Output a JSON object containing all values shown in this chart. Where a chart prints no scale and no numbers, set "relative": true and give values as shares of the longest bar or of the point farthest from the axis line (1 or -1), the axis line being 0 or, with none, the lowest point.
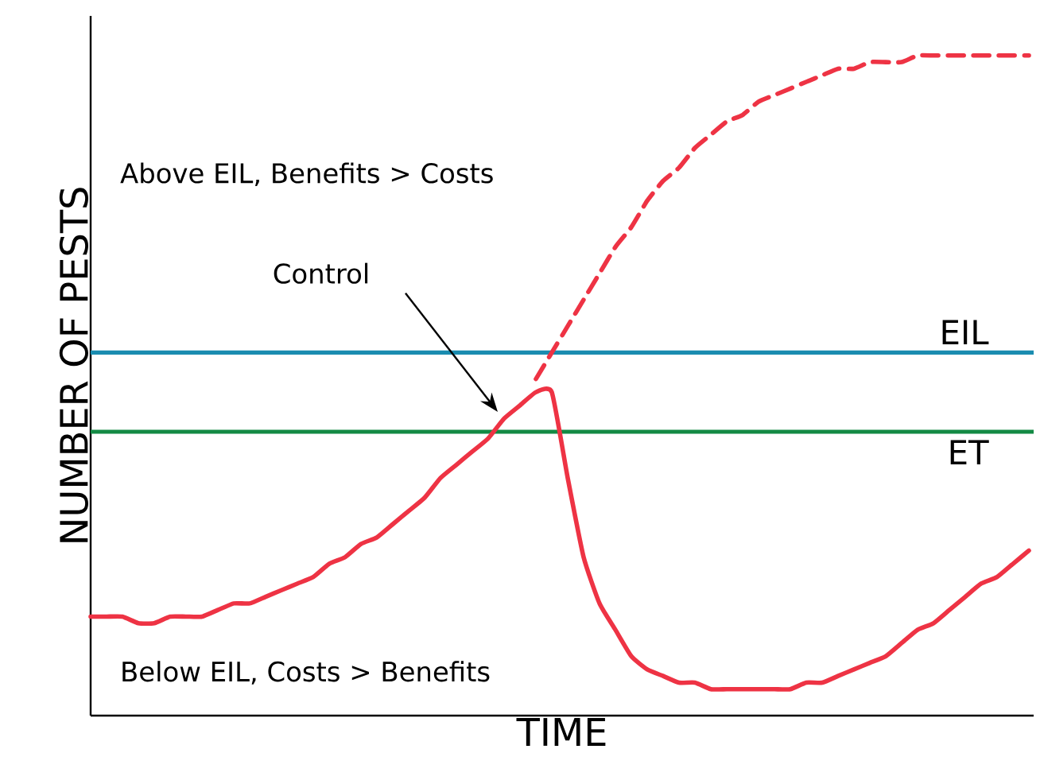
{
  "chart_data": {
    "type": "line",
    "relative": true,
    "xlabel": "TIME",
    "ylabel": "NUMBER OF PESTS",
    "tick_labels": false,
    "marker": "none",
    "categories": [
      null,
      null,
      null,
      null,
      null,
      null,
      null,
      null,
      null,
      null,
      null,
      null,
      null,
      null,
      null,
      null,
      null,
      null,
      null,
      null,
      null,
      null,
      null,
      null,
      null,
      null,
      null,
      null,
      null,
      null,
      null,
      null,
      null,
      null,
      null,
      null,
      null,
      null,
      null,
      null,
      null,
      null,
      null,
      null,
      null,
      null,
      null,
      null,
      null,
      null,
      null,
      null,
      null,
      null,
      null,
      null,
      null,
      null,
      null,
      null
    ],
    "series": [
      {
        "color": "#ee3344",
        "line_style": "solid",
        "values": [
          0.15,
          0.15,
          0.15,
          0.14,
          0.14,
          0.15,
          0.15,
          0.15,
          0.16,
          0.17,
          0.17,
          0.18,
          0.19,
          0.2,
          0.21,
          0.23,
          0.24,
          0.26,
          0.27,
          0.29,
          0.31,
          0.33,
          0.36,
          0.38,
          0.4,
          0.42,
          0.45,
          0.47,
          0.49,
          0.49,
          0.36,
          0.24,
          0.17,
          0.13,
          0.09,
          0.07,
          0.06,
          0.05,
          0.05,
          0.04,
          0.04,
          0.04,
          0.04,
          0.04,
          0.04,
          0.05,
          0.05,
          0.06,
          0.07,
          0.08,
          0.09,
          0.11,
          0.13,
          0.14,
          0.16,
          0.18,
          0.2,
          0.21,
          0.23,
          0.25
        ]
      },
      {
        "color": "#ee3344",
        "line_style": "dashed",
        "values": [
          null,
          null,
          null,
          null,
          null,
          null,
          null,
          null,
          null,
          null,
          null,
          null,
          null,
          null,
          null,
          null,
          null,
          null,
          null,
          null,
          null,
          null,
          null,
          null,
          null,
          null,
          null,
          null,
          0.51,
          0.55,
          0.59,
          0.63,
          0.67,
          0.71,
          0.74,
          0.78,
          0.81,
          0.83,
          0.86,
          0.88,
          0.9,
          0.91,
          0.93,
          0.94,
          0.95,
          0.96,
          0.97,
          0.98,
          0.98,
          0.99,
          0.99,
          0.99,
          1.0,
          1.0,
          1.0,
          1.0,
          1.0,
          1.0,
          1.0,
          1.0
        ]
      }
    ],
    "ref_lines": [
      {
        "axis": "y",
        "value": 0.55,
        "label": "EIL",
        "color": "#1a8cb0"
      },
      {
        "axis": "y",
        "value": 0.43,
        "label": "ET",
        "color": "#138a44"
      }
    ],
    "annotations": [
      "Above EIL, Benefits > Costs",
      "Below EIL, Costs > Benefits",
      "Control"
    ]
  }
}
